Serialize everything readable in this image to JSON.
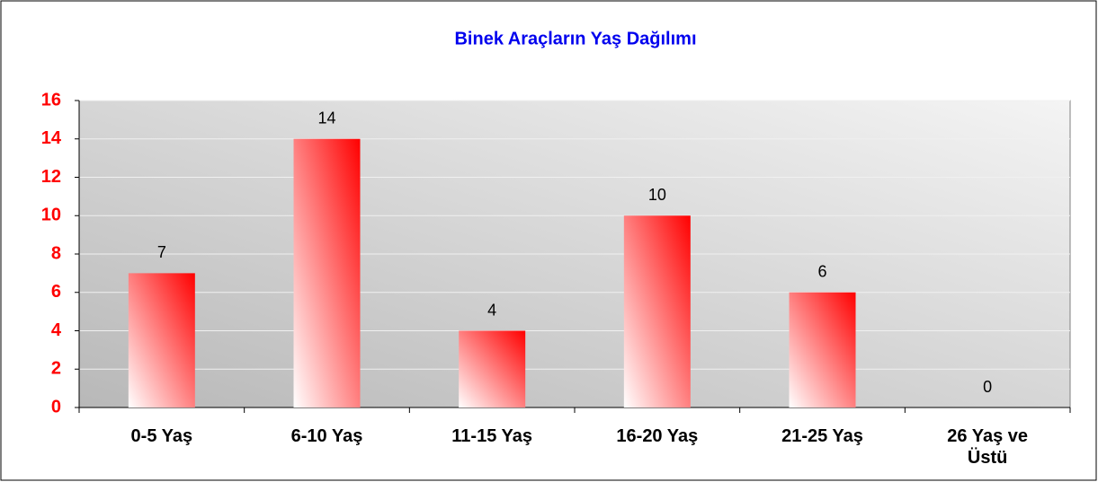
{
  "chart_data": {
    "type": "bar",
    "title": "Binek Araçların Yaş Dağılımı",
    "categories": [
      "0-5 Yaş",
      "6-10 Yaş",
      "11-15 Yaş",
      "16-20 Yaş",
      "21-25 Yaş",
      "26 Yaş ve Üstü"
    ],
    "values": [
      7,
      14,
      4,
      10,
      6,
      0
    ],
    "color": "#ff0000",
    "ylim": [
      0,
      16
    ],
    "yticks": [
      0,
      2,
      4,
      6,
      8,
      10,
      12,
      14,
      16
    ],
    "grid": true
  }
}
